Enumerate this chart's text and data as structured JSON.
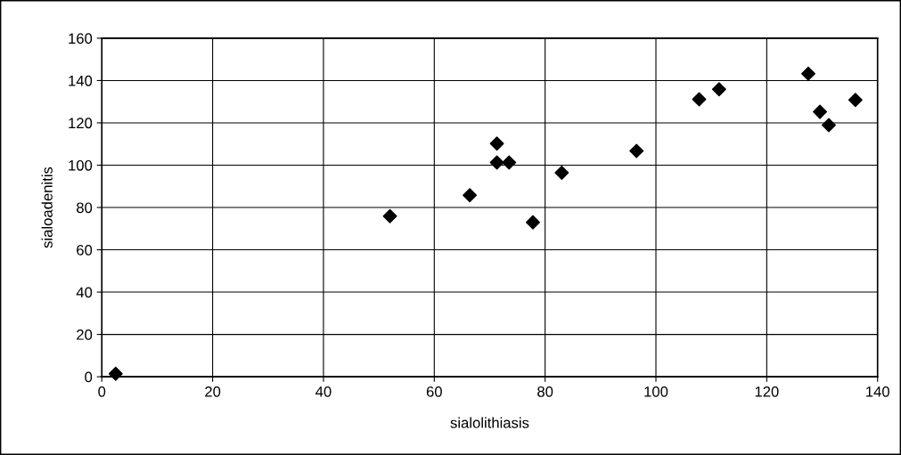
{
  "chart_data": {
    "type": "scatter",
    "xlabel": "sialolithiasis",
    "ylabel": "sialoadenitis",
    "series": [
      {
        "color": "#000000",
        "x": [
          2.5,
          52.0,
          66.4,
          71.3,
          71.3,
          73.5,
          77.8,
          83.0,
          96.5,
          107.8,
          111.4,
          127.5,
          129.6,
          131.2,
          136.0
        ],
        "values": [
          1.4,
          75.9,
          85.8,
          110.2,
          101.3,
          101.3,
          73.0,
          96.4,
          106.7,
          131.1,
          135.9,
          143.2,
          125.2,
          118.9,
          130.8
        ]
      }
    ],
    "marker": "diamond",
    "grid": true,
    "xlim": [
      0,
      140
    ],
    "xticks": [
      0,
      20,
      40,
      60,
      80,
      100,
      120,
      140
    ],
    "ylim": [
      0,
      160
    ],
    "yticks": [
      0,
      20,
      40,
      60,
      80,
      100,
      120,
      140,
      160
    ]
  }
}
